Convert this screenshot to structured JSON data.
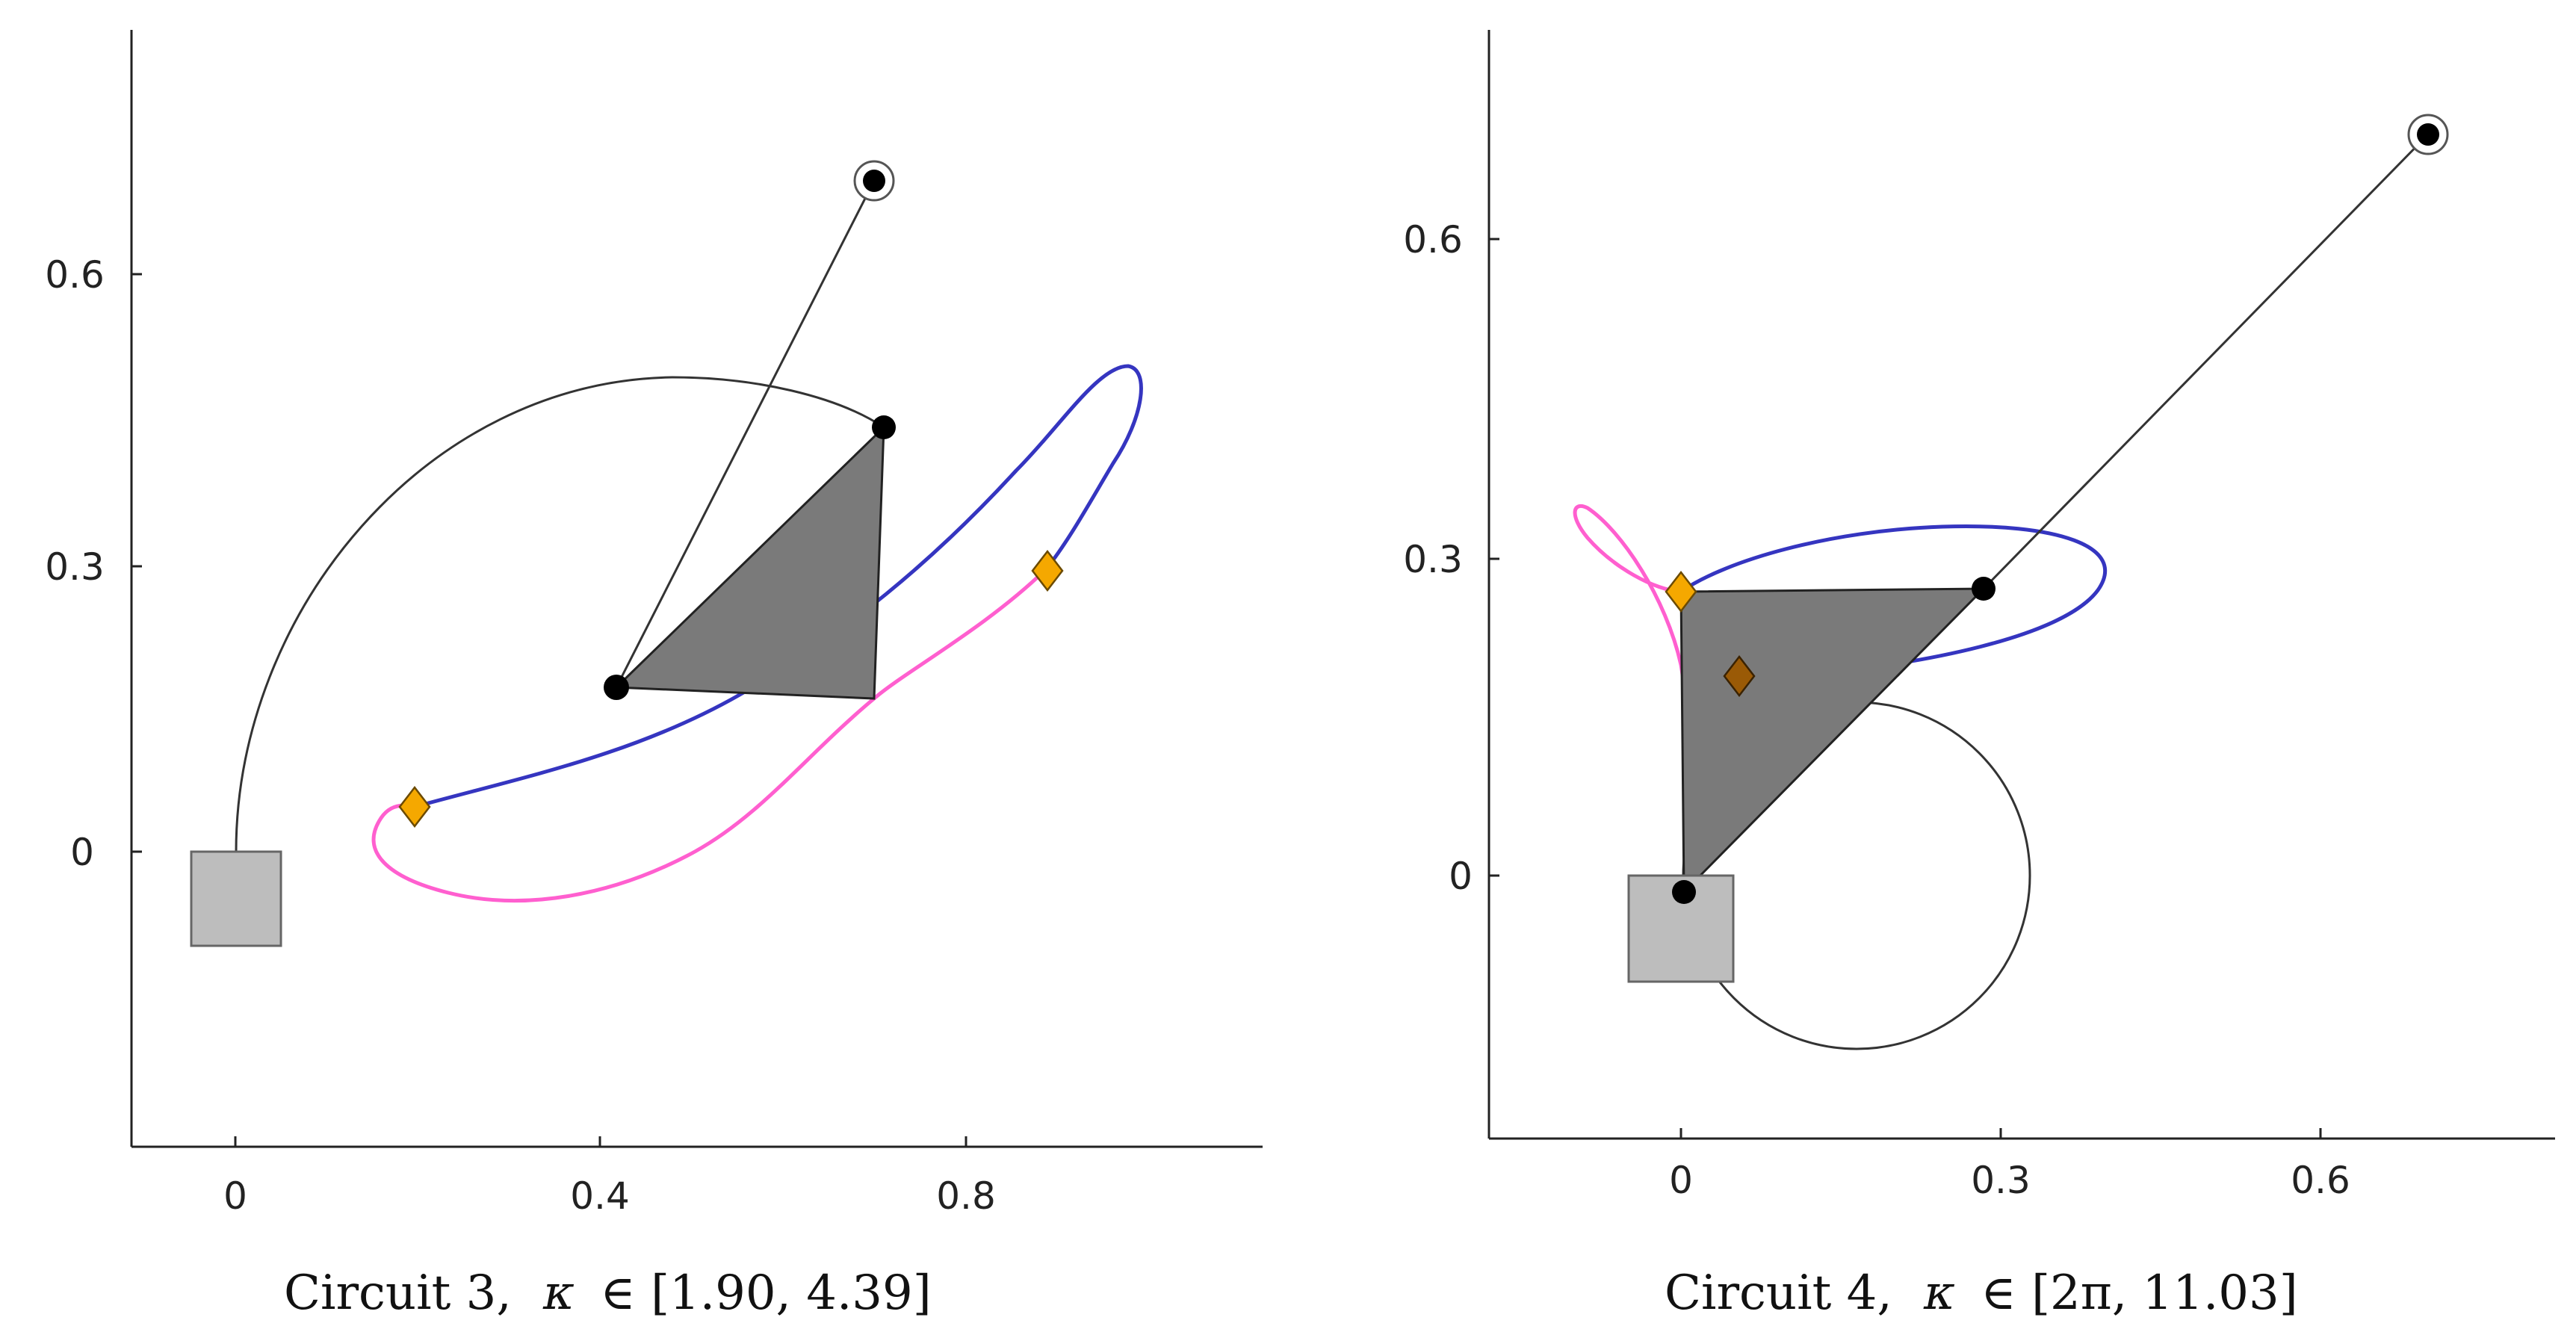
{
  "colors": {
    "axis": "#222222",
    "link": "#333333",
    "triangle_fill": "#7a7a7a",
    "block_fill": "#bdbdbd",
    "block_stroke": "#666666",
    "curve_blue": "#3535c0",
    "curve_pink": "#ff5fcf",
    "marker_orange": "#f5a800",
    "marker_brown": "#9a5a06",
    "joint": "#000000"
  },
  "panels": [
    {
      "caption_prefix": "Circuit 3,",
      "caption_symbol": "κ",
      "caption_range": "∈ [1.90, 4.39]",
      "x_ticks": [
        "0",
        "0.4",
        "0.8"
      ],
      "y_ticks": [
        "0",
        "0.3",
        "0.6"
      ]
    },
    {
      "caption_prefix": "Circuit 4,",
      "caption_symbol": "κ",
      "caption_range": "∈ [2π, 11.03]",
      "x_ticks": [
        "0",
        "0.3",
        "0.6"
      ],
      "y_ticks": [
        "0",
        "0.3",
        "0.6"
      ]
    }
  ]
}
